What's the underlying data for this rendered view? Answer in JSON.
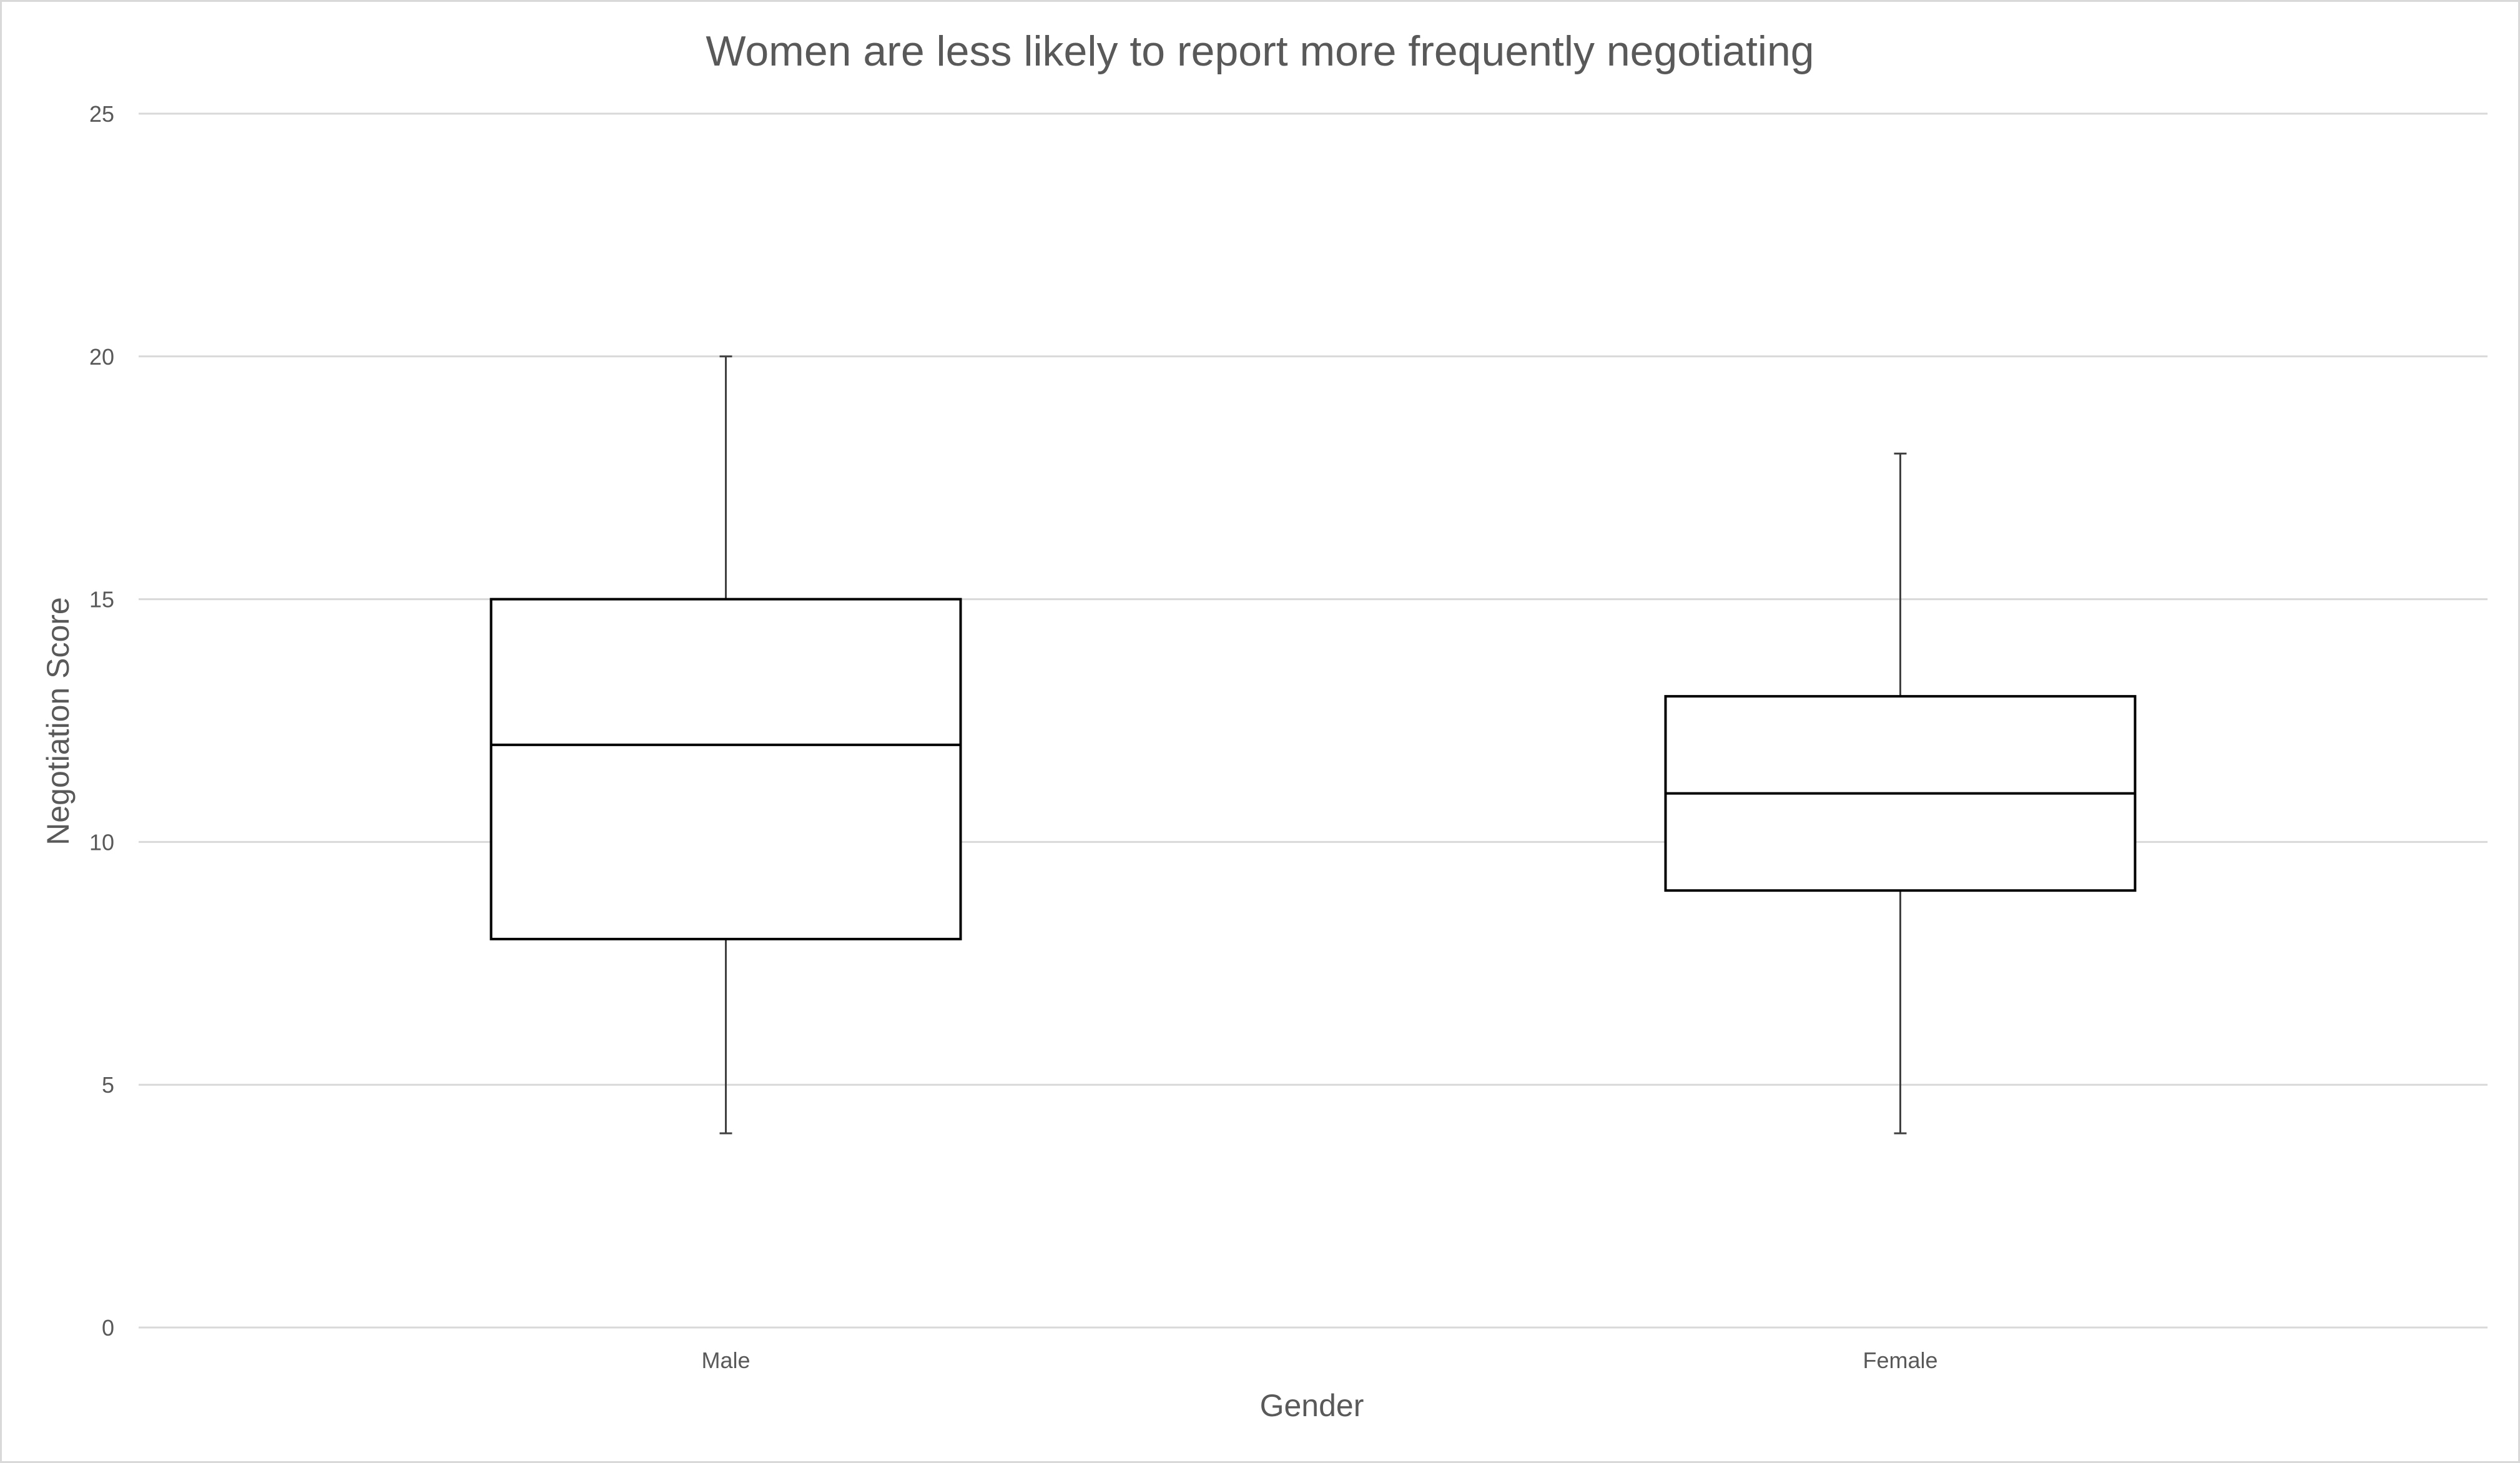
{
  "chart_data": {
    "type": "box",
    "title": "Women are less likely to report more frequently negotiating",
    "xlabel": "Gender",
    "ylabel": "Negotiation Score",
    "ylim": [
      0,
      25
    ],
    "yticks": [
      0,
      5,
      10,
      15,
      20,
      25
    ],
    "grid": true,
    "legend": "none",
    "categories": [
      "Male",
      "Female"
    ],
    "boxes": [
      {
        "category": "Male",
        "min": 4,
        "q1": 8,
        "median": 12,
        "q3": 15,
        "max": 20
      },
      {
        "category": "Female",
        "min": 4,
        "q1": 9,
        "median": 11,
        "q3": 13,
        "max": 18
      }
    ],
    "colors": {
      "box_fill": "#ffffff",
      "box_stroke": "#000000",
      "whisker": "#404040",
      "grid": "#d9d9d9",
      "text": "#595959"
    }
  }
}
